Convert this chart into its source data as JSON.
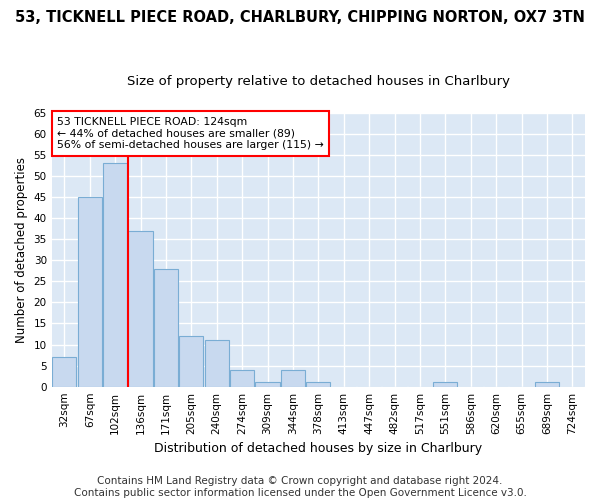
{
  "title1": "53, TICKNELL PIECE ROAD, CHARLBURY, CHIPPING NORTON, OX7 3TN",
  "title2": "Size of property relative to detached houses in Charlbury",
  "xlabel": "Distribution of detached houses by size in Charlbury",
  "ylabel": "Number of detached properties",
  "bar_labels": [
    "32sqm",
    "67sqm",
    "102sqm",
    "136sqm",
    "171sqm",
    "205sqm",
    "240sqm",
    "274sqm",
    "309sqm",
    "344sqm",
    "378sqm",
    "413sqm",
    "447sqm",
    "482sqm",
    "517sqm",
    "551sqm",
    "586sqm",
    "620sqm",
    "655sqm",
    "689sqm",
    "724sqm"
  ],
  "bar_values": [
    7,
    45,
    53,
    37,
    28,
    12,
    11,
    4,
    1,
    4,
    1,
    0,
    0,
    0,
    0,
    1,
    0,
    0,
    0,
    1,
    0
  ],
  "bar_color": "#c8d9ef",
  "bar_edge_color": "#7aadd4",
  "vline_x": 2.5,
  "vline_color": "red",
  "annotation_text": "53 TICKNELL PIECE ROAD: 124sqm\n← 44% of detached houses are smaller (89)\n56% of semi-detached houses are larger (115) →",
  "annotation_box_color": "white",
  "annotation_box_edge": "red",
  "ylim": [
    0,
    65
  ],
  "yticks": [
    0,
    5,
    10,
    15,
    20,
    25,
    30,
    35,
    40,
    45,
    50,
    55,
    60,
    65
  ],
  "footer": "Contains HM Land Registry data © Crown copyright and database right 2024.\nContains public sector information licensed under the Open Government Licence v3.0.",
  "bg_color": "#ffffff",
  "plot_bg_color": "#dce8f5",
  "grid_color": "#ffffff",
  "title1_fontsize": 10.5,
  "title2_fontsize": 9.5,
  "xlabel_fontsize": 9,
  "ylabel_fontsize": 8.5,
  "tick_fontsize": 7.5,
  "footer_fontsize": 7.5
}
